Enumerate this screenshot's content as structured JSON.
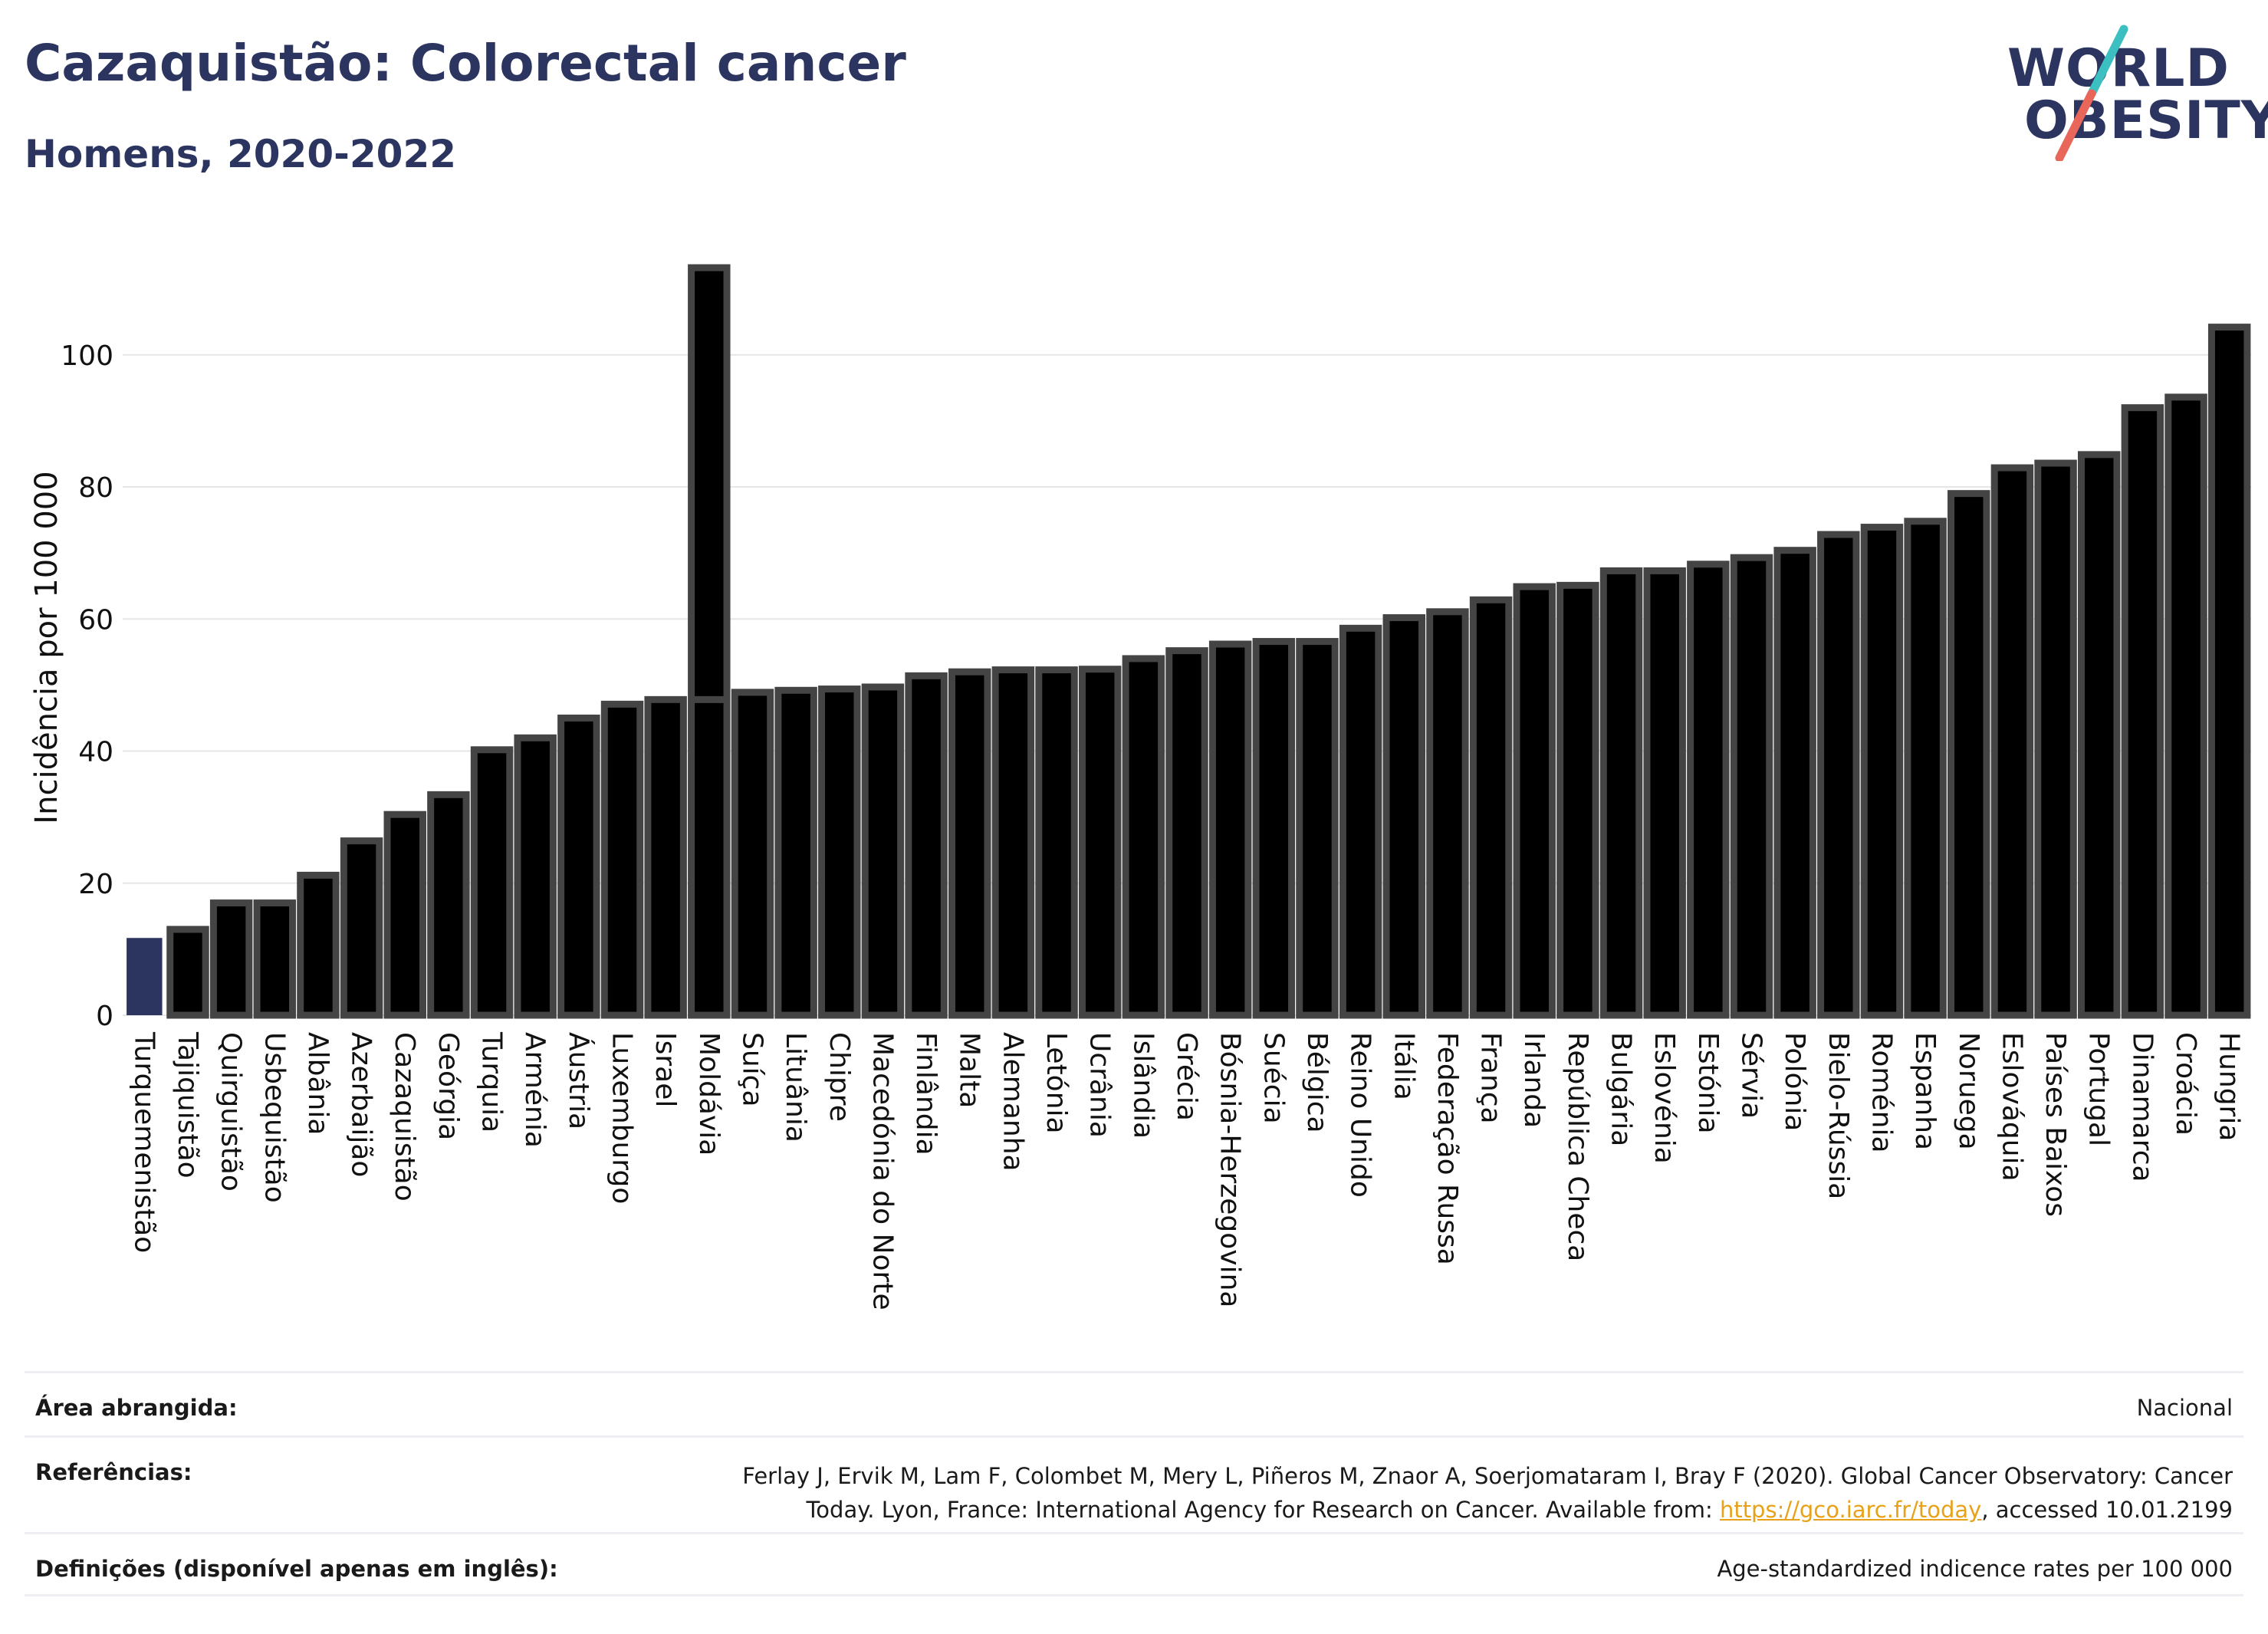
{
  "header": {
    "title": "Cazaquistão: Colorectal cancer",
    "subtitle": "Homens, 2020-2022"
  },
  "logo": {
    "line1": "WORLD",
    "line2": "OBESITY",
    "colors": {
      "text": "#2b3560",
      "slash_top": "#3cbfc0",
      "slash_bottom": "#e8675a"
    }
  },
  "colors": {
    "bar": "#000000",
    "bar_outline": "#444444",
    "highlight": "#2b3560",
    "grid": "#e6e6e6"
  },
  "chart_data": {
    "type": "bar",
    "ylabel": "Incidência por 100 000",
    "ylim": [
      0,
      116
    ],
    "yticks": [
      0,
      20,
      40,
      60,
      80,
      100
    ],
    "grid": true,
    "highlight_category": "Turquemenistão",
    "categories": [
      "Turquemenistão",
      "Tajiquistão",
      "Quirguistão",
      "Usbequistão",
      "Albânia",
      "Azerbaijão",
      "Cazaquistão",
      "Geórgia",
      "Turquia",
      "Arménia",
      "Áustria",
      "Luxemburgo",
      "Israel",
      "Moldávia",
      "Suíça",
      "Lituânia",
      "Chipre",
      "Macedónia do Norte",
      "Finlândia",
      "Malta",
      "Alemanha",
      "Letónia",
      "Ucrânia",
      "Islândia",
      "Grécia",
      "Bósnia-Herzegovina",
      "Suécia",
      "Bélgica",
      "Reino Unido",
      "Itália",
      "Federação Russa",
      "França",
      "Irlanda",
      "República Checa",
      "Bulgária",
      "Eslovénia",
      "Estónia",
      "Sérvia",
      "Polónia",
      "Bielo-Rússia",
      "Roménia",
      "Espanha",
      "Noruega",
      "Eslováquia",
      "Países Baixos",
      "Portugal",
      "Dinamarca",
      "Croácia",
      "Hungria"
    ],
    "values": [
      11.7,
      13.0,
      17.0,
      17.0,
      21.2,
      26.4,
      30.4,
      33.4,
      40.2,
      42.0,
      45.0,
      47.1,
      47.8,
      113.2,
      48.9,
      49.2,
      49.4,
      49.7,
      51.4,
      52.0,
      52.3,
      52.3,
      52.4,
      54.0,
      55.2,
      56.2,
      56.6,
      56.6,
      58.6,
      60.2,
      61.1,
      62.9,
      64.9,
      65.1,
      67.3,
      67.3,
      68.3,
      69.3,
      70.4,
      72.8,
      73.9,
      74.8,
      79.0,
      82.9,
      83.6,
      84.9,
      92.0,
      93.6,
      104.2
    ],
    "secondary_mark": {
      "category": "Moldávia",
      "value": 47.8
    }
  },
  "footer": {
    "area_label": "Área abrangida:",
    "area_value": "Nacional",
    "ref_label": "Referências:",
    "ref_line1": "Ferlay J, Ervik M, Lam F, Colombet M, Mery L, Piñeros M, Znaor A, Soerjomataram I, Bray F (2020). Global Cancer Observatory: Cancer",
    "ref_line2_pre": "Today. Lyon, France: International Agency for Research on Cancer. Available from: ",
    "ref_link": "https://gco.iarc.fr/today",
    "ref_line2_post": ", accessed 10.01.2199",
    "def_label": "Definições (disponível apenas em inglês):",
    "def_value": "Age-standardized indicence rates per 100 000"
  }
}
